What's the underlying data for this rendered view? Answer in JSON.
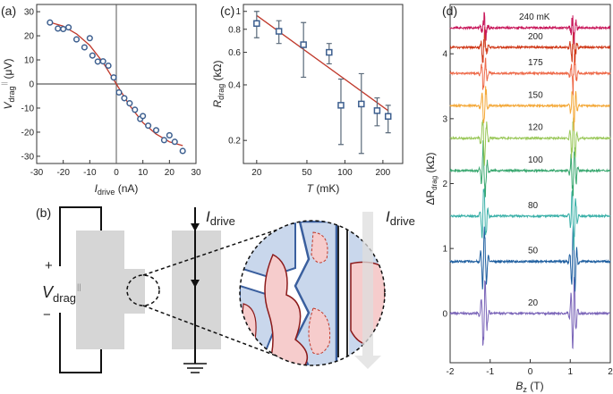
{
  "panels": {
    "a": "(a)",
    "b": "(b)",
    "c": "(c)",
    "d": "(d)"
  },
  "chart_data": [
    {
      "panel": "a",
      "type": "scatter",
      "xlabel": {
        "main": "I",
        "sub": "drive",
        "unit": " (nA)"
      },
      "ylabel": {
        "main": "V",
        "sub": "drag",
        "sup": "||",
        "unit": " (μV)"
      },
      "xlim": [
        -30,
        30
      ],
      "ylim": [
        -33,
        33
      ],
      "xticks": [
        -30,
        -20,
        -10,
        0,
        10,
        20,
        30
      ],
      "yticks": [
        -30,
        -20,
        -10,
        0,
        10,
        20,
        30
      ],
      "marker_color": "#3d5f8f",
      "fit_color": "#c0392b",
      "points": [
        [
          -25,
          25.5
        ],
        [
          -22,
          23
        ],
        [
          -20,
          22.8
        ],
        [
          -18,
          23.5
        ],
        [
          -15,
          18.5
        ],
        [
          -12,
          15.2
        ],
        [
          -10,
          19
        ],
        [
          -9,
          11.8
        ],
        [
          -7,
          9.3
        ],
        [
          -5,
          9.4
        ],
        [
          -3,
          7.6
        ],
        [
          -1,
          2.7
        ],
        [
          1,
          -3.5
        ],
        [
          3,
          -5.9
        ],
        [
          5,
          -8
        ],
        [
          7,
          -10.7
        ],
        [
          9,
          -14.5
        ],
        [
          10,
          -13.3
        ],
        [
          12,
          -17.3
        ],
        [
          15,
          -19.2
        ],
        [
          18,
          -23.3
        ],
        [
          20,
          -21.3
        ],
        [
          22,
          -24
        ],
        [
          25,
          -27.8
        ]
      ],
      "fit": [
        [
          -25,
          25.6
        ],
        [
          -20,
          24
        ],
        [
          -15,
          20.8
        ],
        [
          -10,
          16
        ],
        [
          -5,
          8.9
        ],
        [
          0,
          0
        ],
        [
          5,
          -8.9
        ],
        [
          10,
          -16
        ],
        [
          15,
          -20.8
        ],
        [
          20,
          -24
        ],
        [
          25,
          -25.6
        ]
      ]
    },
    {
      "panel": "c",
      "type": "scatter",
      "xscale": "log",
      "yscale": "log",
      "xlabel": {
        "main": "T",
        "unit": " (mK)"
      },
      "ylabel": {
        "main": "R",
        "sub": "drag",
        "unit": " (kΩ)"
      },
      "xlim": [
        15.7,
        287
      ],
      "ylim": [
        0.15,
        1.09
      ],
      "xticks": [
        20,
        50,
        100,
        200
      ],
      "yticks": [
        0.2,
        0.4,
        0.6,
        0.8,
        1
      ],
      "marker_color": "#3d5f8f",
      "fit_color": "#c0392b",
      "points": [
        {
          "T": 20,
          "R": 0.86,
          "lo": 0.72,
          "hi": 1.0
        },
        {
          "T": 30,
          "R": 0.78,
          "lo": 0.67,
          "hi": 0.89
        },
        {
          "T": 47,
          "R": 0.66,
          "lo": 0.44,
          "hi": 0.87
        },
        {
          "T": 75,
          "R": 0.6,
          "lo": 0.52,
          "hi": 0.67
        },
        {
          "T": 93,
          "R": 0.31,
          "lo": 0.19,
          "hi": 0.43
        },
        {
          "T": 135,
          "R": 0.315,
          "lo": 0.17,
          "hi": 0.46
        },
        {
          "T": 180,
          "R": 0.29,
          "lo": 0.24,
          "hi": 0.34
        },
        {
          "T": 220,
          "R": 0.27,
          "lo": 0.22,
          "hi": 0.31
        }
      ],
      "fit": [
        [
          20,
          0.95
        ],
        [
          220,
          0.29
        ]
      ]
    },
    {
      "panel": "d",
      "type": "line",
      "xlabel": {
        "main": "B",
        "sub": "z",
        "unit": " (T)"
      },
      "ylabel": {
        "pre": "ΔR",
        "sub": "drag",
        "unit": " (kΩ)"
      },
      "xlim": [
        -2,
        2
      ],
      "ylim": [
        -0.76,
        4.76
      ],
      "xticks": [
        -2,
        -1,
        0,
        1,
        2
      ],
      "yticks": [
        0,
        1,
        2,
        3,
        4
      ],
      "series": [
        {
          "name": "20",
          "offset": 0,
          "color": "#7a64b8"
        },
        {
          "name": "50",
          "offset": 0.8,
          "color": "#1f5fa0"
        },
        {
          "name": "80",
          "offset": 1.5,
          "color": "#3ab0a8"
        },
        {
          "name": "100",
          "offset": 2.2,
          "color": "#3aa870"
        },
        {
          "name": "120",
          "offset": 2.7,
          "color": "#9ac85a"
        },
        {
          "name": "150",
          "offset": 3.2,
          "color": "#f4a93a"
        },
        {
          "name": "175",
          "offset": 3.7,
          "color": "#ee6a4a"
        },
        {
          "name": "200",
          "offset": 4.1,
          "color": "#d03a1a"
        },
        {
          "name": "240 mK",
          "offset": 4.4,
          "color": "#c8175a"
        }
      ]
    }
  ],
  "diagram": {
    "plus": "+",
    "minus": "−",
    "vdrag": {
      "main": "V",
      "sub": "drag",
      "sup": "||"
    },
    "idrive": {
      "main": "I",
      "sub": "drive"
    },
    "idrive2": {
      "main": "I",
      "sub": "drive"
    }
  }
}
